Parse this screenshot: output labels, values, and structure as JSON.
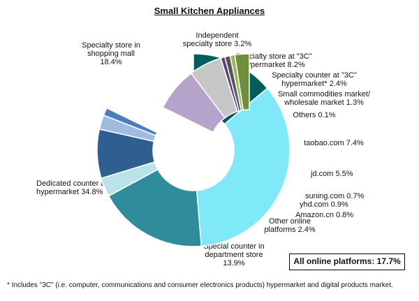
{
  "chart_data": {
    "type": "pie",
    "title": "Small Kitchen Appliances",
    "slices": [
      {
        "lines": [
          "Special counter in",
          "department store",
          "13.9%"
        ],
        "value": 13.9,
        "color": "#005e5c",
        "group": "offline"
      },
      {
        "lines": [
          "Dedicated counter at",
          "hypermarket  34.8%"
        ],
        "value": 34.8,
        "color": "#7fe9f9",
        "group": "offline"
      },
      {
        "lines": [
          "Specialty store in",
          "shopping mall",
          "18.4%"
        ],
        "value": 18.4,
        "color": "#2e8c9b",
        "group": "offline"
      },
      {
        "lines": [
          "Independent",
          "specialty store  3.2%"
        ],
        "value": 3.2,
        "color": "#b9e2ea",
        "group": "offline"
      },
      {
        "lines": [
          "Specialty store at \"3C\"",
          "hypermarket 8.2%"
        ],
        "value": 8.2,
        "color": "#2f5f91",
        "group": "offline"
      },
      {
        "lines": [
          "Specialty counter at \"3C\"",
          "hypermarket* 2.4%"
        ],
        "value": 2.4,
        "color": "#9dbce0",
        "group": "offline"
      },
      {
        "lines": [
          "Small commodities market/",
          "wholesale market 1.3%"
        ],
        "value": 1.3,
        "color": "#4a7fbf",
        "group": "offline"
      },
      {
        "lines": [
          "Others  0.1%"
        ],
        "value": 0.1,
        "color": "#7a9fd0",
        "group": "offline"
      },
      {
        "lines": [
          "taobao.com  7.4%"
        ],
        "value": 7.4,
        "color": "#b6a3cc",
        "group": "online"
      },
      {
        "lines": [
          "jd.com   5.5%"
        ],
        "value": 5.5,
        "color": "#c6c6c6",
        "group": "online"
      },
      {
        "lines": [
          "suning.com  0.7%"
        ],
        "value": 0.7,
        "color": "#5a3f82",
        "group": "online"
      },
      {
        "lines": [
          "yhd.com   0.9%"
        ],
        "value": 0.9,
        "color": "#555555",
        "group": "online"
      },
      {
        "lines": [
          "Amazon.cn   0.8%"
        ],
        "value": 0.8,
        "color": "#9bbb59",
        "group": "online"
      },
      {
        "lines": [
          "Other online",
          "platforms 2.4%"
        ],
        "value": 2.4,
        "color": "#6f8f3a",
        "group": "online"
      }
    ],
    "total_note": "All online platforms: 17.7%",
    "footnote": "* Includes \"3C\" (i.e. computer, communications and consumer electronics products) hypermarket and digital products market."
  }
}
